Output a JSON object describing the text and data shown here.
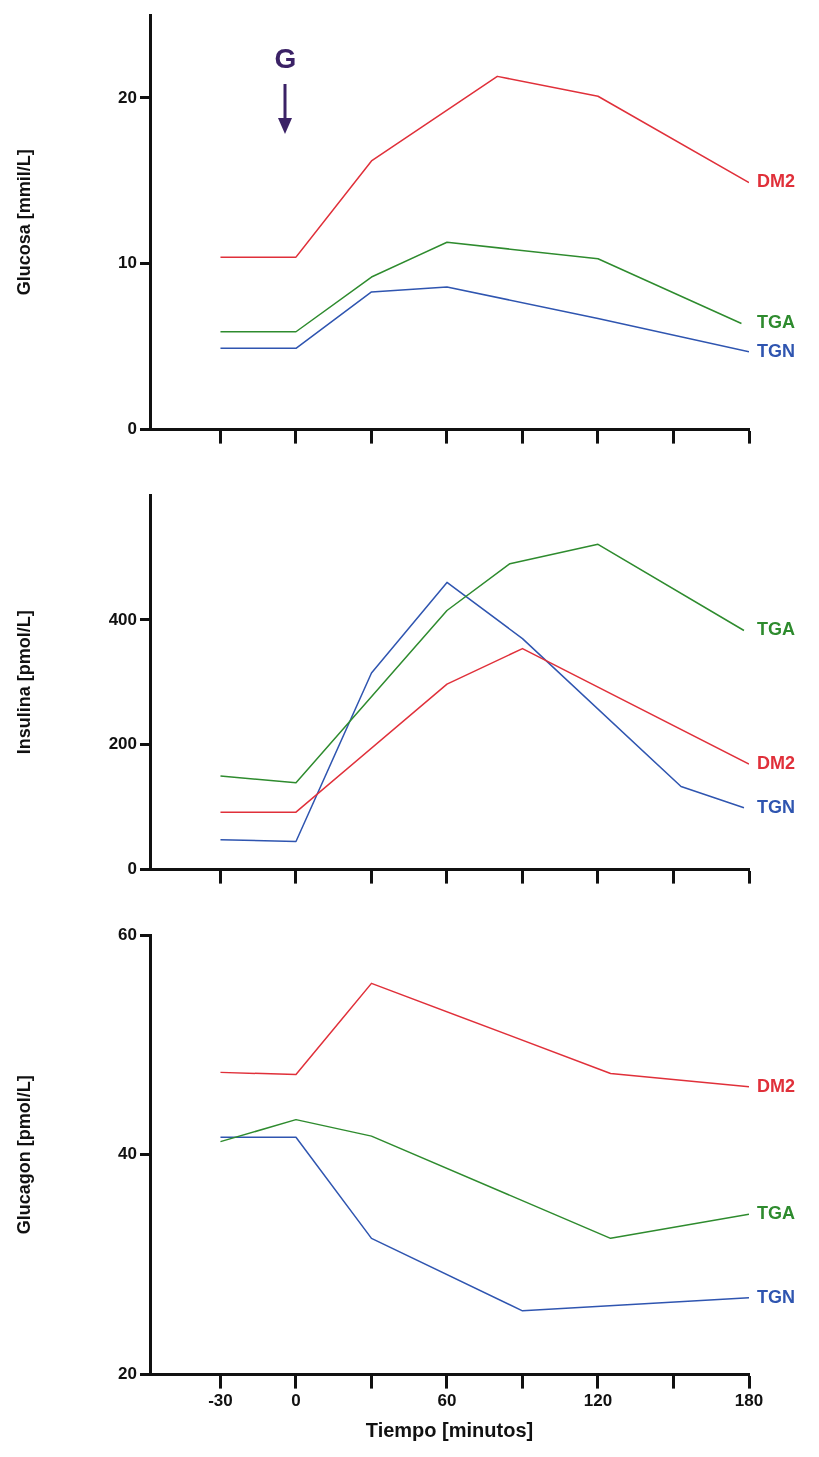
{
  "chart_data": [
    {
      "type": "line",
      "ylabel": "Glucosa [mmil/L]",
      "xlim": [
        -58,
        180
      ],
      "ylim": [
        0,
        25
      ],
      "yticks": [
        0,
        10,
        20
      ],
      "xticks": [
        -30,
        0,
        {
          "value": 30,
          "label": null
        },
        60,
        {
          "value": 90,
          "label": null
        },
        120,
        {
          "value": 150,
          "label": null
        },
        180
      ],
      "tick_labels": "y",
      "grid": false,
      "legend": false,
      "marker": "none",
      "line_style": "solid",
      "annotations": [
        "G"
      ],
      "series": [
        {
          "name": "DM2",
          "color": "#e0303a",
          "x": [
            -30,
            0,
            30,
            80,
            120,
            180
          ],
          "values": [
            10.4,
            10.4,
            16.2,
            21.3,
            20.1,
            14.9
          ]
        },
        {
          "name": "TGA",
          "color": "#2e8b2e",
          "x": [
            -30,
            0,
            30,
            60,
            120,
            177
          ],
          "values": [
            5.9,
            5.9,
            9.2,
            11.3,
            10.3,
            6.4
          ]
        },
        {
          "name": "TGN",
          "color": "#2f55b0",
          "x": [
            -30,
            0,
            30,
            60,
            120,
            180
          ],
          "values": [
            4.9,
            4.9,
            8.3,
            8.6,
            6.7,
            4.7
          ]
        }
      ]
    },
    {
      "type": "line",
      "ylabel": "Insulina [pmol/L]",
      "xlim": [
        -58,
        180
      ],
      "ylim": [
        0,
        600
      ],
      "yticks": [
        0,
        200,
        400
      ],
      "xticks": [
        -30,
        0,
        {
          "value": 30,
          "label": null
        },
        60,
        {
          "value": 90,
          "label": null
        },
        120,
        {
          "value": 150,
          "label": null
        },
        180
      ],
      "tick_labels": "y",
      "grid": false,
      "legend": false,
      "marker": "none",
      "line_style": "solid",
      "series": [
        {
          "name": "TGA",
          "color": "#2e8b2e",
          "x": [
            -30,
            0,
            60,
            85,
            120,
            178
          ],
          "values": [
            150,
            139,
            415,
            490,
            521,
            383
          ]
        },
        {
          "name": "DM2",
          "color": "#e0303a",
          "x": [
            -30,
            0,
            60,
            90,
            180
          ],
          "values": [
            92,
            92,
            297,
            354,
            169
          ]
        },
        {
          "name": "TGN",
          "color": "#2f55b0",
          "x": [
            -30,
            0,
            30,
            60,
            90,
            153,
            178
          ],
          "values": [
            48,
            45,
            315,
            460,
            370,
            133,
            99
          ]
        }
      ]
    },
    {
      "type": "line",
      "xlabel": "Tiempo [minutos]",
      "ylabel": "Glucagon [pmol/L]",
      "xlim": [
        -58,
        180
      ],
      "ylim": [
        20,
        60
      ],
      "yticks": [
        20,
        40,
        60
      ],
      "xticks": [
        -30,
        0,
        {
          "value": 30,
          "label": null
        },
        60,
        {
          "value": 90,
          "label": null
        },
        120,
        {
          "value": 150,
          "label": null
        },
        180
      ],
      "grid": false,
      "legend": false,
      "marker": "none",
      "line_style": "solid",
      "series": [
        {
          "name": "DM2",
          "color": "#e0303a",
          "x": [
            -30,
            0,
            30,
            125,
            180
          ],
          "values": [
            47.5,
            47.3,
            55.6,
            47.4,
            46.2
          ]
        },
        {
          "name": "TGA",
          "color": "#2e8b2e",
          "x": [
            -30,
            0,
            30,
            125,
            180
          ],
          "values": [
            41.2,
            43.2,
            41.7,
            32.4,
            34.6
          ]
        },
        {
          "name": "TGN",
          "color": "#2f55b0",
          "x": [
            -30,
            0,
            30,
            90,
            180
          ],
          "values": [
            41.6,
            41.6,
            32.4,
            25.8,
            27.0
          ]
        }
      ]
    }
  ]
}
